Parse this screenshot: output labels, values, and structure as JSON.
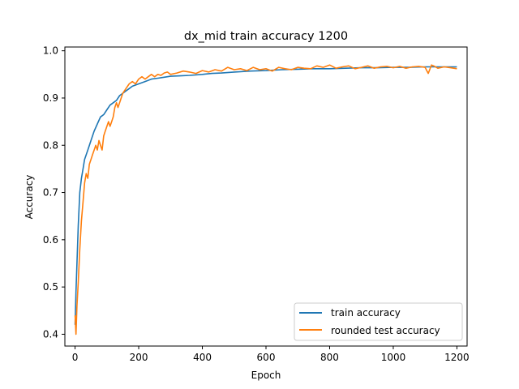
{
  "chart_data": {
    "type": "line",
    "title": "dx_mid train accuracy 1200",
    "xlabel": "Epoch",
    "ylabel": "Accuracy",
    "xlim": [
      -32,
      1232
    ],
    "ylim": [
      0.375,
      1.008
    ],
    "xticks": [
      0,
      200,
      400,
      600,
      800,
      1000,
      1200
    ],
    "xtick_labels": [
      "0",
      "200",
      "400",
      "600",
      "800",
      "1000",
      "1200"
    ],
    "yticks": [
      0.4,
      0.5,
      0.6,
      0.7,
      0.8,
      0.9,
      1.0
    ],
    "ytick_labels": [
      "0.4",
      "0.5",
      "0.6",
      "0.7",
      "0.8",
      "0.9",
      "1.0"
    ],
    "legend_position": "lower-right",
    "series": [
      {
        "name": "train accuracy",
        "color": "#1f77b4",
        "x": [
          0,
          3,
          6,
          10,
          15,
          20,
          25,
          30,
          40,
          50,
          60,
          70,
          80,
          90,
          100,
          110,
          120,
          130,
          140,
          150,
          160,
          170,
          180,
          200,
          220,
          240,
          260,
          280,
          300,
          330,
          360,
          400,
          430,
          460,
          500,
          550,
          600,
          650,
          700,
          750,
          800,
          850,
          900,
          950,
          1000,
          1050,
          1100,
          1150,
          1200
        ],
        "y": [
          0.42,
          0.49,
          0.55,
          0.63,
          0.7,
          0.73,
          0.75,
          0.77,
          0.79,
          0.81,
          0.83,
          0.845,
          0.86,
          0.865,
          0.875,
          0.885,
          0.89,
          0.895,
          0.905,
          0.91,
          0.915,
          0.92,
          0.925,
          0.93,
          0.935,
          0.94,
          0.942,
          0.944,
          0.946,
          0.947,
          0.948,
          0.95,
          0.952,
          0.953,
          0.955,
          0.957,
          0.958,
          0.96,
          0.961,
          0.962,
          0.962,
          0.963,
          0.964,
          0.964,
          0.965,
          0.965,
          0.966,
          0.966,
          0.966
        ]
      },
      {
        "name": "rounded test accuracy",
        "color": "#ff7f0e",
        "x": [
          0,
          3,
          6,
          10,
          15,
          20,
          25,
          30,
          35,
          40,
          45,
          50,
          55,
          60,
          65,
          70,
          75,
          80,
          85,
          90,
          95,
          100,
          105,
          110,
          115,
          120,
          125,
          130,
          135,
          140,
          150,
          160,
          170,
          180,
          190,
          200,
          210,
          220,
          230,
          240,
          250,
          260,
          270,
          280,
          290,
          300,
          320,
          340,
          360,
          380,
          400,
          420,
          440,
          460,
          480,
          500,
          520,
          540,
          560,
          580,
          600,
          620,
          640,
          660,
          680,
          700,
          720,
          740,
          760,
          780,
          800,
          820,
          840,
          860,
          880,
          900,
          920,
          940,
          960,
          980,
          1000,
          1020,
          1040,
          1060,
          1080,
          1100,
          1110,
          1120,
          1130,
          1140,
          1160,
          1180,
          1200
        ],
        "y": [
          0.44,
          0.4,
          0.46,
          0.51,
          0.58,
          0.64,
          0.68,
          0.72,
          0.74,
          0.73,
          0.76,
          0.77,
          0.78,
          0.79,
          0.8,
          0.79,
          0.81,
          0.8,
          0.79,
          0.82,
          0.83,
          0.84,
          0.85,
          0.84,
          0.85,
          0.86,
          0.88,
          0.89,
          0.88,
          0.89,
          0.91,
          0.92,
          0.93,
          0.935,
          0.93,
          0.94,
          0.945,
          0.94,
          0.945,
          0.95,
          0.945,
          0.95,
          0.948,
          0.953,
          0.955,
          0.95,
          0.953,
          0.957,
          0.955,
          0.952,
          0.958,
          0.955,
          0.96,
          0.957,
          0.965,
          0.96,
          0.962,
          0.958,
          0.965,
          0.96,
          0.962,
          0.957,
          0.965,
          0.962,
          0.96,
          0.965,
          0.963,
          0.962,
          0.968,
          0.965,
          0.97,
          0.963,
          0.966,
          0.968,
          0.962,
          0.965,
          0.968,
          0.963,
          0.966,
          0.967,
          0.964,
          0.967,
          0.963,
          0.966,
          0.967,
          0.965,
          0.952,
          0.97,
          0.967,
          0.963,
          0.966,
          0.964,
          0.962
        ]
      }
    ]
  }
}
